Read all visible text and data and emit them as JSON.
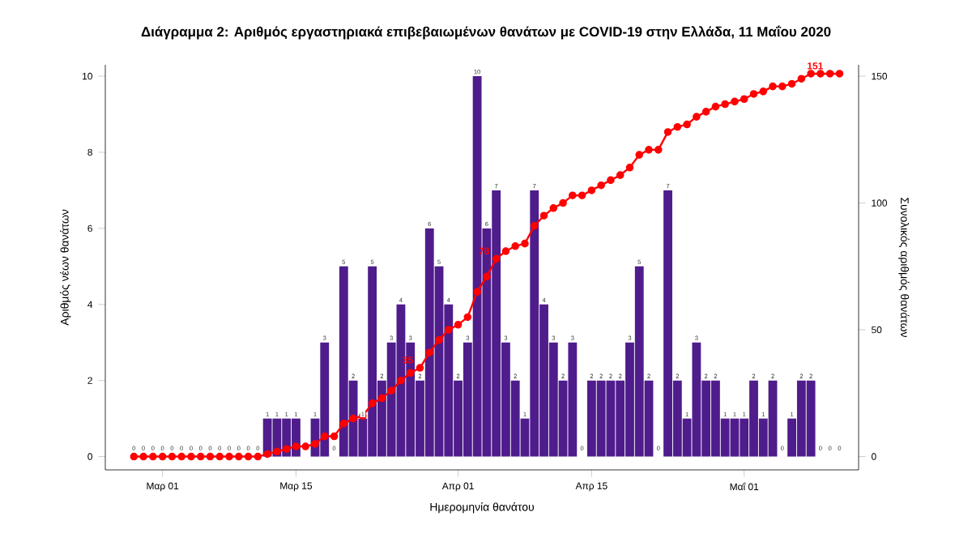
{
  "chart_data": {
    "type": "bar",
    "title": "Διάγραμμα 2: Αριθμός εργαστηριακά επιβεβαιωμένων θανάτων με COVID-19 στην Ελλάδα, 11 Μαΐου 2020",
    "xlabel": "Ημερομηνία θανάτου",
    "ylabel": "Αριθμός νέων θανάτων",
    "y2label": "Συνολικός αριθμός θανάτων",
    "x": [
      "2020-02-27",
      "2020-02-28",
      "2020-02-29",
      "2020-03-01",
      "2020-03-02",
      "2020-03-03",
      "2020-03-04",
      "2020-03-05",
      "2020-03-06",
      "2020-03-07",
      "2020-03-08",
      "2020-03-09",
      "2020-03-10",
      "2020-03-11",
      "2020-03-12",
      "2020-03-13",
      "2020-03-14",
      "2020-03-15",
      "2020-03-16",
      "2020-03-17",
      "2020-03-18",
      "2020-03-19",
      "2020-03-20",
      "2020-03-21",
      "2020-03-22",
      "2020-03-23",
      "2020-03-24",
      "2020-03-25",
      "2020-03-26",
      "2020-03-27",
      "2020-03-28",
      "2020-03-29",
      "2020-03-30",
      "2020-03-31",
      "2020-04-01",
      "2020-04-02",
      "2020-04-03",
      "2020-04-04",
      "2020-04-05",
      "2020-04-06",
      "2020-04-07",
      "2020-04-08",
      "2020-04-09",
      "2020-04-10",
      "2020-04-11",
      "2020-04-12",
      "2020-04-13",
      "2020-04-14",
      "2020-04-15",
      "2020-04-16",
      "2020-04-17",
      "2020-04-18",
      "2020-04-19",
      "2020-04-20",
      "2020-04-21",
      "2020-04-22",
      "2020-04-23",
      "2020-04-24",
      "2020-04-25",
      "2020-04-26",
      "2020-04-27",
      "2020-04-28",
      "2020-04-29",
      "2020-04-30",
      "2020-05-01",
      "2020-05-02",
      "2020-05-03",
      "2020-05-04",
      "2020-05-05",
      "2020-05-06",
      "2020-05-07",
      "2020-05-08",
      "2020-05-09",
      "2020-05-10",
      "2020-05-11"
    ],
    "series": [
      {
        "type": "bar",
        "color": "#4f1c8c",
        "values": [
          0,
          0,
          0,
          0,
          0,
          0,
          0,
          0,
          0,
          0,
          0,
          0,
          0,
          0,
          1,
          1,
          1,
          1,
          null,
          1,
          3,
          0,
          5,
          2,
          1,
          5,
          2,
          3,
          4,
          3,
          2,
          6,
          5,
          4,
          2,
          3,
          10,
          6,
          7,
          3,
          2,
          1,
          7,
          4,
          3,
          2,
          3,
          0,
          2,
          2,
          2,
          2,
          3,
          5,
          2,
          0,
          7,
          2,
          1,
          3,
          2,
          2,
          1,
          1,
          1,
          2,
          1,
          2,
          0,
          1,
          2,
          2,
          0,
          0,
          0
        ],
        "value_labels": [
          "0",
          "0",
          "0",
          "0",
          "0",
          "0",
          "0",
          "0",
          "0",
          "0",
          "0",
          "0",
          "0",
          "0",
          "1",
          "1",
          "1",
          "1",
          null,
          "1",
          "3",
          "0",
          "5",
          "2",
          "1",
          "5",
          "2",
          "3",
          "4",
          "3",
          "2",
          "6",
          "5",
          "4",
          "2",
          "3",
          "10",
          "6",
          "7",
          "3",
          "2",
          "1",
          "7",
          "4",
          "3",
          "2",
          "3",
          "0",
          "2",
          "2",
          "2",
          "2",
          "3",
          "5",
          "2",
          "0",
          "7",
          "2",
          "1",
          "3",
          "2",
          "2",
          "1",
          "1",
          "1",
          "2",
          "1",
          "2",
          "0",
          "1",
          "2",
          "2",
          "0",
          "0",
          "0"
        ]
      },
      {
        "type": "line",
        "axis": "y2",
        "color": "#ff0000",
        "marker": "circle",
        "values": [
          0,
          0,
          0,
          0,
          0,
          0,
          0,
          0,
          0,
          0,
          0,
          0,
          0,
          0,
          1,
          2,
          3,
          4,
          4,
          5,
          8,
          8,
          13,
          15,
          16,
          21,
          23,
          26,
          30,
          33,
          35,
          41,
          46,
          50,
          52,
          55,
          65,
          71,
          78,
          81,
          83,
          84,
          91,
          95,
          98,
          100,
          103,
          103,
          105,
          107,
          109,
          111,
          114,
          119,
          121,
          121,
          128,
          130,
          131,
          134,
          136,
          138,
          139,
          140,
          141,
          143,
          144,
          146,
          146,
          147,
          149,
          151,
          151,
          151,
          151
        ],
        "value_labels": [
          null,
          null,
          null,
          null,
          null,
          null,
          null,
          null,
          null,
          null,
          null,
          null,
          null,
          null,
          null,
          null,
          null,
          null,
          null,
          null,
          null,
          null,
          null,
          null,
          null,
          null,
          null,
          null,
          null,
          null,
          "35",
          null,
          null,
          null,
          null,
          null,
          null,
          null,
          "78",
          null,
          null,
          null,
          null,
          null,
          null,
          null,
          null,
          null,
          null,
          null,
          null,
          null,
          null,
          null,
          null,
          null,
          null,
          null,
          null,
          null,
          null,
          null,
          null,
          null,
          null,
          null,
          null,
          null,
          null,
          null,
          null,
          null,
          null,
          "151",
          null
        ]
      }
    ],
    "xlim": [
      "2020-02-24",
      "2020-05-13"
    ],
    "xticks": [
      {
        "value": "2020-03-01",
        "label": "Μαρ 01"
      },
      {
        "value": "2020-03-15",
        "label": "Μαρ 15"
      },
      {
        "value": "2020-04-01",
        "label": "Απρ 01"
      },
      {
        "value": "2020-04-15",
        "label": "Απρ 15"
      },
      {
        "value": "2020-05-01",
        "label": "Μαΐ 01"
      }
    ],
    "ylim": [
      -0.35,
      10.3
    ],
    "yticks": [
      0,
      2,
      4,
      6,
      8,
      10
    ],
    "y2lim": [
      -5.25,
      154.5
    ],
    "y2ticks": [
      0,
      50,
      100,
      150
    ]
  }
}
